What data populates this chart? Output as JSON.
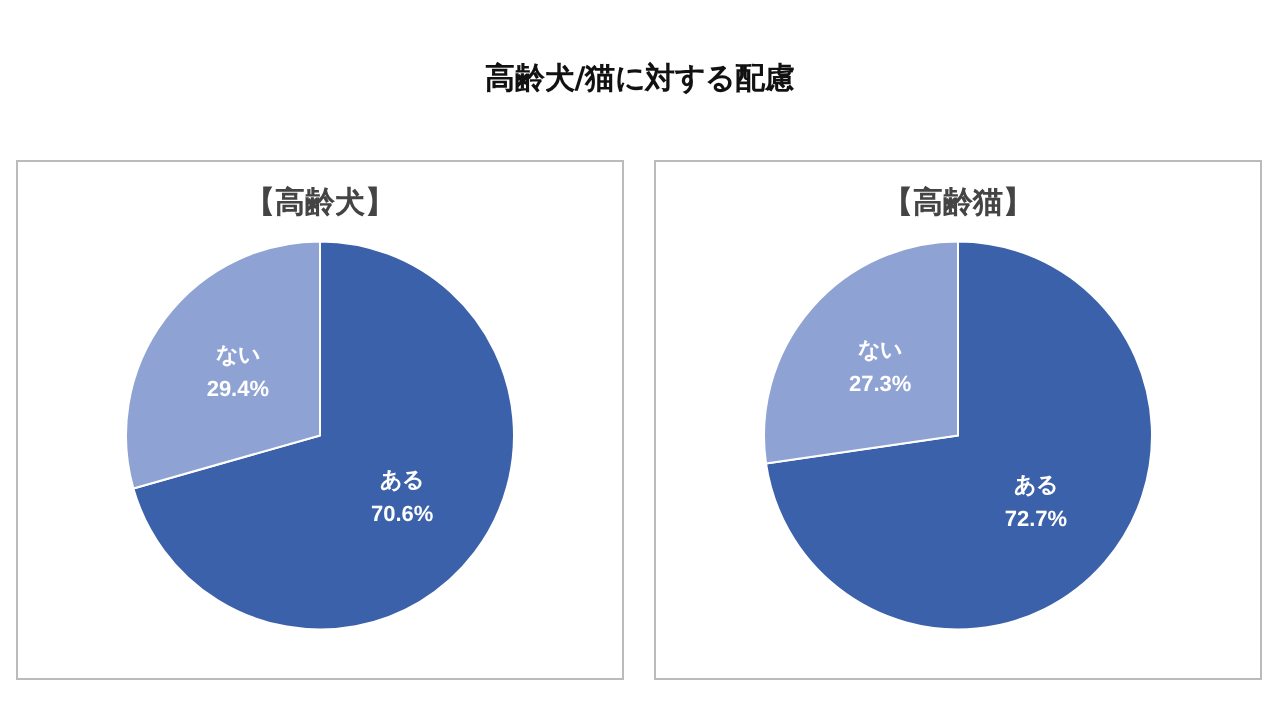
{
  "chart_data": [
    {
      "type": "pie",
      "title": "【高齢犬】",
      "annotations": [
        "高齢犬/猫に対する配慮"
      ],
      "categories": [
        "ある",
        "ない"
      ],
      "values": [
        70.6,
        29.4
      ],
      "value_labels": [
        "70.6%",
        "29.4%"
      ],
      "colors": [
        "#3c61ab",
        "#8fa2d4"
      ],
      "legend": false
    },
    {
      "type": "pie",
      "title": "【高齢猫】",
      "categories": [
        "ある",
        "ない"
      ],
      "values": [
        72.7,
        27.3
      ],
      "value_labels": [
        "72.7%",
        "27.3%"
      ],
      "colors": [
        "#3c61ab",
        "#8fa2d4"
      ],
      "legend": false
    }
  ]
}
